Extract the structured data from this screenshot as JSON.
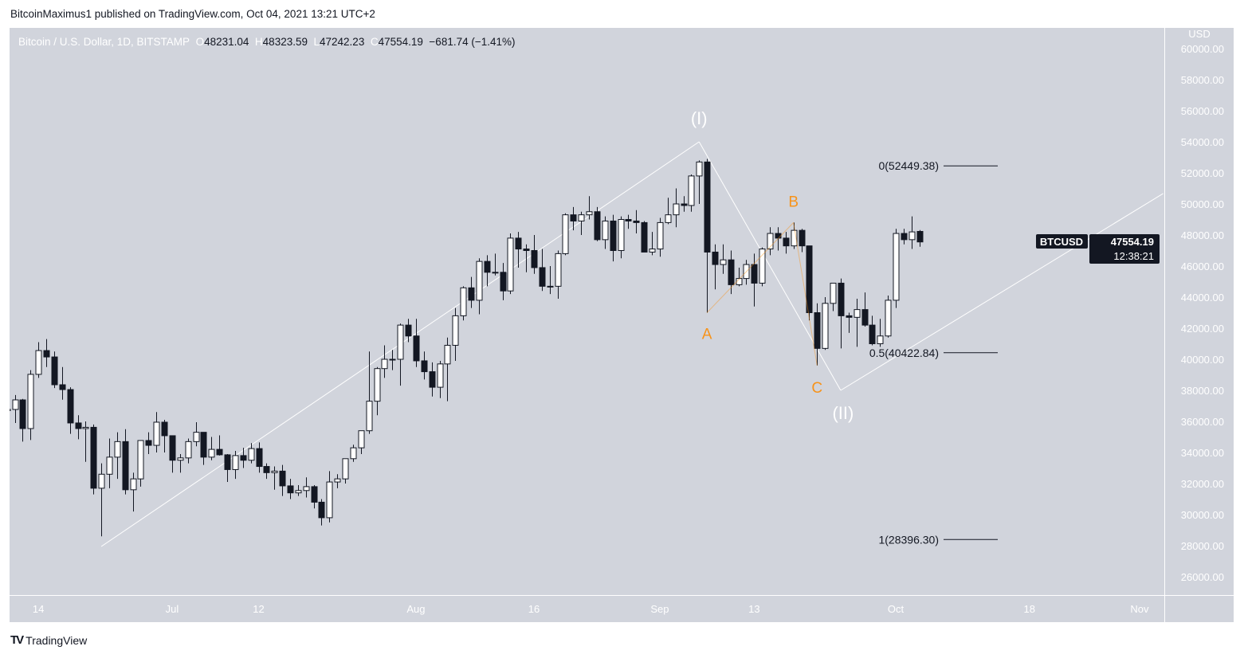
{
  "header": {
    "published": "BitcoinMaximus1 published on TradingView.com, Oct 04, 2021 13:21 UTC+2"
  },
  "legend": {
    "symbol": "Bitcoin / U.S. Dollar, 1D, BITSTAMP",
    "o_label": "O",
    "o": "48231.04",
    "h_label": "H",
    "h": "48323.59",
    "l_label": "L",
    "l": "47242.23",
    "c_label": "C",
    "c": "47554.19",
    "change": "−681.74 (−1.41%)"
  },
  "price_axis": {
    "currency": "USD",
    "ticks": [
      "60000.00",
      "58000.00",
      "56000.00",
      "54000.00",
      "52000.00",
      "50000.00",
      "48000.00",
      "46000.00",
      "44000.00",
      "42000.00",
      "40000.00",
      "38000.00",
      "36000.00",
      "34000.00",
      "32000.00",
      "30000.00",
      "28000.00",
      "26000.00"
    ]
  },
  "time_axis": {
    "ticks": [
      {
        "label": "14",
        "date": "2021-06-14"
      },
      {
        "label": "Jul",
        "date": "2021-07-01"
      },
      {
        "label": "12",
        "date": "2021-07-12"
      },
      {
        "label": "Aug",
        "date": "2021-08-01"
      },
      {
        "label": "16",
        "date": "2021-08-16"
      },
      {
        "label": "Sep",
        "date": "2021-09-01"
      },
      {
        "label": "13",
        "date": "2021-09-13"
      },
      {
        "label": "Oct",
        "date": "2021-10-01"
      },
      {
        "label": "18",
        "date": "2021-10-18"
      },
      {
        "label": "Nov",
        "date": "2021-11-01"
      }
    ]
  },
  "last_price": {
    "symbol": "BTCUSD",
    "price": "47554.19",
    "countdown": "12:38:21"
  },
  "colors": {
    "background": "#d1d4dc",
    "up": "#ffffff",
    "down": "#131722",
    "wave": "#f7931a",
    "trend": "#ffffff"
  },
  "annotations": {
    "wave_I": {
      "text": "(I)",
      "date": "2021-09-06",
      "price": 54000
    },
    "wave_II": {
      "text": "(II)",
      "date": "2021-09-24",
      "price": 38000
    },
    "A": {
      "text": "A",
      "date": "2021-09-07",
      "price": 43000
    },
    "B": {
      "text": "B",
      "date": "2021-09-18",
      "price": 48800
    },
    "C": {
      "text": "C",
      "date": "2021-09-21",
      "price": 39600
    }
  },
  "fib_levels": [
    {
      "label": "0(52449.38)",
      "price": 52449.38
    },
    {
      "label": "0.5(40422.84)",
      "price": 40422.84
    },
    {
      "label": "1(28396.30)",
      "price": 28396.3
    }
  ],
  "trend_lines": [
    [
      [
        "2021-06-22",
        27950
      ],
      [
        "2021-09-06",
        54000
      ]
    ],
    [
      [
        "2021-09-06",
        54000
      ],
      [
        "2021-09-24",
        38000
      ]
    ],
    [
      [
        "2021-09-24",
        38000
      ],
      [
        "2021-11-04",
        50670
      ]
    ]
  ],
  "wave_lines": [
    [
      "2021-09-07",
      43000
    ],
    [
      "2021-09-18",
      48800
    ],
    [
      "2021-09-21",
      39600
    ]
  ],
  "footer": {
    "brand": "TradingView"
  },
  "chart_data": {
    "type": "candlestick",
    "title": "Bitcoin / U.S. Dollar, 1D, BITSTAMP",
    "ylabel": "USD",
    "ylim": [
      25000,
      61000
    ],
    "xlim": [
      "2021-06-10",
      "2021-11-04"
    ],
    "grid": false,
    "columns": [
      "date",
      "open",
      "high",
      "low",
      "close"
    ],
    "candles": [
      [
        "2021-06-10",
        36700,
        38400,
        35800,
        36770
      ],
      [
        "2021-06-11",
        36770,
        37700,
        35900,
        37385
      ],
      [
        "2021-06-12",
        37385,
        37450,
        34700,
        35540
      ],
      [
        "2021-06-13",
        35540,
        39300,
        34800,
        39030
      ],
      [
        "2021-06-14",
        39030,
        41100,
        38800,
        40560
      ],
      [
        "2021-06-15",
        40560,
        41300,
        39500,
        40150
      ],
      [
        "2021-06-16",
        40150,
        40500,
        38150,
        38360
      ],
      [
        "2021-06-17",
        38360,
        39500,
        37400,
        38050
      ],
      [
        "2021-06-18",
        38050,
        38200,
        35200,
        35900
      ],
      [
        "2021-06-19",
        35900,
        36400,
        34850,
        35540
      ],
      [
        "2021-06-20",
        35540,
        36000,
        33400,
        35620
      ],
      [
        "2021-06-21",
        35620,
        35800,
        31300,
        31700
      ],
      [
        "2021-06-22",
        31700,
        33300,
        28600,
        32600
      ],
      [
        "2021-06-23",
        32600,
        34900,
        31700,
        33700
      ],
      [
        "2021-06-24",
        33700,
        35300,
        32300,
        34700
      ],
      [
        "2021-06-25",
        34700,
        35500,
        31300,
        31600
      ],
      [
        "2021-06-26",
        31600,
        32700,
        30200,
        32300
      ],
      [
        "2021-06-27",
        32300,
        34700,
        31800,
        34770
      ],
      [
        "2021-06-28",
        34770,
        35300,
        33900,
        34460
      ],
      [
        "2021-06-29",
        34460,
        36600,
        34000,
        35950
      ],
      [
        "2021-06-30",
        35950,
        36100,
        34000,
        35080
      ],
      [
        "2021-07-01",
        35080,
        35100,
        32700,
        33500
      ],
      [
        "2021-07-02",
        33500,
        33900,
        32700,
        33650
      ],
      [
        "2021-07-03",
        33650,
        34900,
        33300,
        34700
      ],
      [
        "2021-07-04",
        34700,
        35950,
        34400,
        35300
      ],
      [
        "2021-07-05",
        35300,
        35300,
        33200,
        33700
      ],
      [
        "2021-07-06",
        33700,
        35000,
        33500,
        34200
      ],
      [
        "2021-07-07",
        34200,
        35100,
        33800,
        33850
      ],
      [
        "2021-07-08",
        33850,
        33900,
        32100,
        32900
      ],
      [
        "2021-07-09",
        32900,
        34100,
        32300,
        33800
      ],
      [
        "2021-07-10",
        33800,
        34300,
        33000,
        33500
      ],
      [
        "2021-07-11",
        33500,
        34600,
        33300,
        34250
      ],
      [
        "2021-07-12",
        34250,
        34650,
        32700,
        33100
      ],
      [
        "2021-07-13",
        33100,
        33300,
        32300,
        32700
      ],
      [
        "2021-07-14",
        32700,
        33100,
        31600,
        32800
      ],
      [
        "2021-07-15",
        32800,
        33200,
        31200,
        31850
      ],
      [
        "2021-07-16",
        31850,
        32300,
        31000,
        31400
      ],
      [
        "2021-07-17",
        31400,
        31900,
        31200,
        31550
      ],
      [
        "2021-07-18",
        31550,
        32400,
        31100,
        31800
      ],
      [
        "2021-07-19",
        31800,
        31900,
        30400,
        30800
      ],
      [
        "2021-07-20",
        30800,
        31000,
        29300,
        29800
      ],
      [
        "2021-07-21",
        29800,
        32800,
        29500,
        32100
      ],
      [
        "2021-07-22",
        32100,
        32600,
        31700,
        32300
      ],
      [
        "2021-07-23",
        32300,
        33600,
        32000,
        33600
      ],
      [
        "2021-07-24",
        33600,
        34500,
        33400,
        34300
      ],
      [
        "2021-07-25",
        34300,
        35400,
        33900,
        35400
      ],
      [
        "2021-07-26",
        35400,
        40500,
        35200,
        37300
      ],
      [
        "2021-07-27",
        37300,
        39500,
        36400,
        39400
      ],
      [
        "2021-07-28",
        39400,
        40900,
        38800,
        40000
      ],
      [
        "2021-07-29",
        40000,
        40600,
        39300,
        40000
      ],
      [
        "2021-07-30",
        40000,
        42300,
        38300,
        42200
      ],
      [
        "2021-07-31",
        42200,
        42600,
        41100,
        41500
      ],
      [
        "2021-08-01",
        41500,
        42600,
        39500,
        39900
      ],
      [
        "2021-08-02",
        39900,
        40500,
        38700,
        39200
      ],
      [
        "2021-08-03",
        39200,
        39800,
        37600,
        38200
      ],
      [
        "2021-08-04",
        38200,
        39900,
        37500,
        39700
      ],
      [
        "2021-08-05",
        39700,
        41400,
        37300,
        40900
      ],
      [
        "2021-08-06",
        40900,
        43300,
        39900,
        42800
      ],
      [
        "2021-08-07",
        42800,
        44700,
        42500,
        44600
      ],
      [
        "2021-08-08",
        44600,
        45300,
        43300,
        43800
      ],
      [
        "2021-08-09",
        43800,
        46500,
        42900,
        46300
      ],
      [
        "2021-08-10",
        46300,
        46700,
        44700,
        45600
      ],
      [
        "2021-08-11",
        45600,
        46800,
        45400,
        45600
      ],
      [
        "2021-08-12",
        45600,
        46200,
        43800,
        44400
      ],
      [
        "2021-08-13",
        44400,
        48100,
        44200,
        47800
      ],
      [
        "2021-08-14",
        47800,
        48200,
        45900,
        47100
      ],
      [
        "2021-08-15",
        47100,
        47400,
        45600,
        47000
      ],
      [
        "2021-08-16",
        47000,
        48000,
        45500,
        45900
      ],
      [
        "2021-08-17",
        45900,
        47100,
        44400,
        44700
      ],
      [
        "2021-08-18",
        44700,
        46000,
        44200,
        44700
      ],
      [
        "2021-08-19",
        44700,
        47000,
        43900,
        46800
      ],
      [
        "2021-08-20",
        46800,
        49400,
        46700,
        49300
      ],
      [
        "2021-08-21",
        49300,
        49800,
        48300,
        48900
      ],
      [
        "2021-08-22",
        48900,
        49500,
        48000,
        49300
      ],
      [
        "2021-08-23",
        49300,
        50500,
        49000,
        49500
      ],
      [
        "2021-08-24",
        49500,
        49800,
        47600,
        47700
      ],
      [
        "2021-08-25",
        47700,
        49200,
        47100,
        48900
      ],
      [
        "2021-08-26",
        48900,
        49300,
        46300,
        47000
      ],
      [
        "2021-08-27",
        47000,
        49200,
        46500,
        49000
      ],
      [
        "2021-08-28",
        49000,
        49300,
        48400,
        48900
      ],
      [
        "2021-08-29",
        48900,
        49600,
        48100,
        48800
      ],
      [
        "2021-08-30",
        48800,
        48900,
        46900,
        46900
      ],
      [
        "2021-08-31",
        46900,
        48200,
        46700,
        47100
      ],
      [
        "2021-09-01",
        47100,
        49100,
        46600,
        48800
      ],
      [
        "2021-09-02",
        48800,
        50400,
        48700,
        49300
      ],
      [
        "2021-09-03",
        49300,
        51000,
        48500,
        50000
      ],
      [
        "2021-09-04",
        50000,
        50500,
        49500,
        49900
      ],
      [
        "2021-09-05",
        49900,
        51900,
        49500,
        51800
      ],
      [
        "2021-09-06",
        51800,
        52800,
        50000,
        52700
      ],
      [
        "2021-09-07",
        52700,
        52900,
        43000,
        46900
      ],
      [
        "2021-09-08",
        46900,
        47400,
        44500,
        46100
      ],
      [
        "2021-09-09",
        46100,
        47400,
        45500,
        46400
      ],
      [
        "2021-09-10",
        46400,
        47000,
        44200,
        44800
      ],
      [
        "2021-09-11",
        44800,
        45900,
        44700,
        45200
      ],
      [
        "2021-09-12",
        45200,
        46400,
        44800,
        46100
      ],
      [
        "2021-09-13",
        46100,
        46800,
        43400,
        44900
      ],
      [
        "2021-09-14",
        44900,
        47200,
        44700,
        47100
      ],
      [
        "2021-09-15",
        47100,
        48500,
        46700,
        48100
      ],
      [
        "2021-09-16",
        48100,
        48500,
        47000,
        47800
      ],
      [
        "2021-09-17",
        47800,
        48200,
        46800,
        47300
      ],
      [
        "2021-09-18",
        47300,
        48800,
        47100,
        48300
      ],
      [
        "2021-09-19",
        48300,
        48400,
        46900,
        47300
      ],
      [
        "2021-09-20",
        47300,
        47300,
        42500,
        43000
      ],
      [
        "2021-09-21",
        43000,
        43600,
        39600,
        40700
      ],
      [
        "2021-09-22",
        40700,
        44000,
        40600,
        43600
      ],
      [
        "2021-09-23",
        43600,
        44900,
        43100,
        44900
      ],
      [
        "2021-09-24",
        44900,
        45200,
        40700,
        42800
      ],
      [
        "2021-09-25",
        42800,
        43000,
        41700,
        42700
      ],
      [
        "2021-09-26",
        42700,
        43900,
        40800,
        43200
      ],
      [
        "2021-09-27",
        43200,
        44300,
        42100,
        42200
      ],
      [
        "2021-09-28",
        42200,
        42800,
        40900,
        41000
      ],
      [
        "2021-09-29",
        41000,
        42600,
        40800,
        41500
      ],
      [
        "2021-09-30",
        41500,
        44100,
        41400,
        43800
      ],
      [
        "2021-10-01",
        43800,
        48400,
        43300,
        48100
      ],
      [
        "2021-10-02",
        48100,
        48400,
        47400,
        47700
      ],
      [
        "2021-10-03",
        47700,
        49200,
        47100,
        48200
      ],
      [
        "2021-10-04",
        48231.04,
        48323.59,
        47242.23,
        47554.19
      ]
    ]
  }
}
